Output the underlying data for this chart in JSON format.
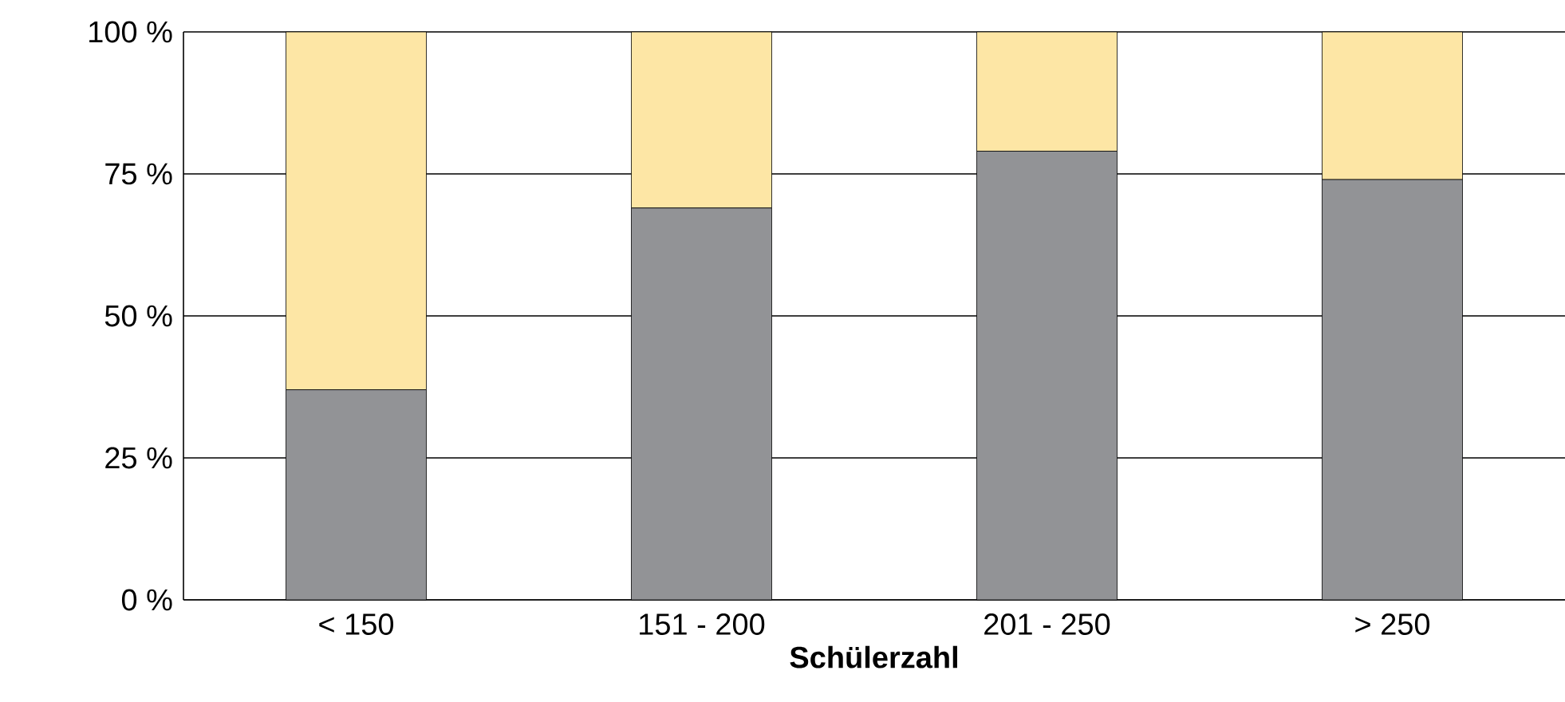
{
  "chart_data": {
    "type": "bar",
    "stacked": true,
    "xlabel": "**Schülerzahl**",
    "categories": [
      "< 150",
      "151 - 200",
      "201 - 250",
      "> 250"
    ],
    "series": [
      {
        "color": "#929396",
        "values": [
          37,
          69,
          79,
          74
        ]
      },
      {
        "color": "#fde6a5",
        "values": [
          63,
          31,
          21,
          26
        ]
      }
    ],
    "ylim": [
      0,
      100
    ],
    "yticks": [
      {
        "value": 0,
        "label": "0 %"
      },
      {
        "value": 25,
        "label": "25 %"
      },
      {
        "value": 50,
        "label": "50 %"
      },
      {
        "value": 75,
        "label": "75 %"
      },
      {
        "value": 100,
        "label": "100 %"
      }
    ],
    "grid": "y"
  }
}
